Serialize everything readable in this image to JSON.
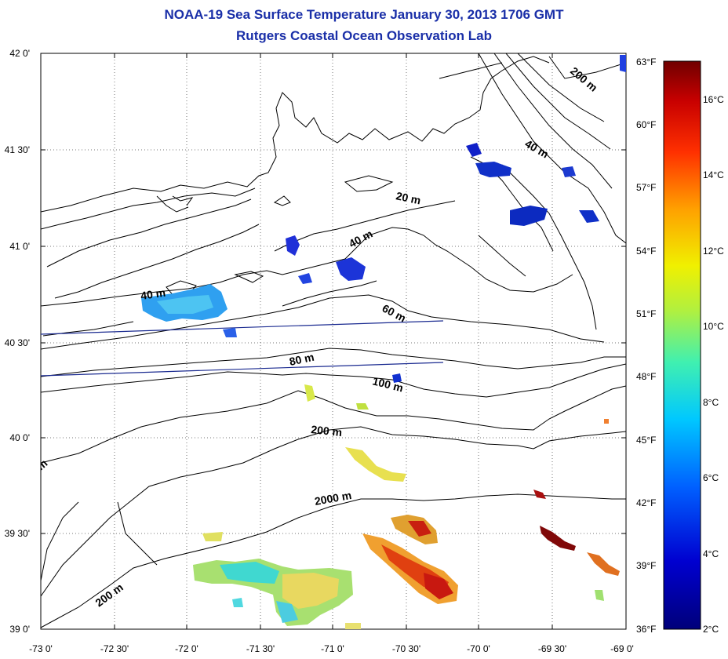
{
  "title": {
    "line1": "NOAA-19 Sea Surface Temperature January 30, 2013 1706 GMT",
    "line2": "Rutgers Coastal Ocean Observation Lab"
  },
  "latitude_ticks": [
    "42 0'",
    "41 30'",
    "41 0'",
    "40 30'",
    "40 0'",
    "39 30'",
    "39 0'"
  ],
  "longitude_ticks": [
    "-73 0'",
    "-72 30'",
    "-72 0'",
    "-71 30'",
    "-71 0'",
    "-70 30'",
    "-70 0'",
    "-69 30'",
    "-69 0'"
  ],
  "colorbar": {
    "fahrenheit_ticks": [
      "63°F",
      "60°F",
      "57°F",
      "54°F",
      "51°F",
      "48°F",
      "45°F",
      "42°F",
      "39°F",
      "36°F"
    ],
    "celsius_ticks": [
      "16°C",
      "14°C",
      "12°C",
      "10°C",
      "8°C",
      "6°C",
      "4°C",
      "2°C"
    ],
    "colors": [
      "#7a0000",
      "#d40000",
      "#ff5000",
      "#ffb000",
      "#e8f000",
      "#8ee060",
      "#20e0d0",
      "#00a0ff",
      "#0040ff",
      "#0000b0",
      "#00007a"
    ]
  },
  "isobaths": [
    "200 m",
    "40 m",
    "20 m",
    "40 m",
    "40 m",
    "60 m",
    "80 m",
    "100 m",
    "200 m",
    "m",
    "2000 m",
    "200 m"
  ]
}
